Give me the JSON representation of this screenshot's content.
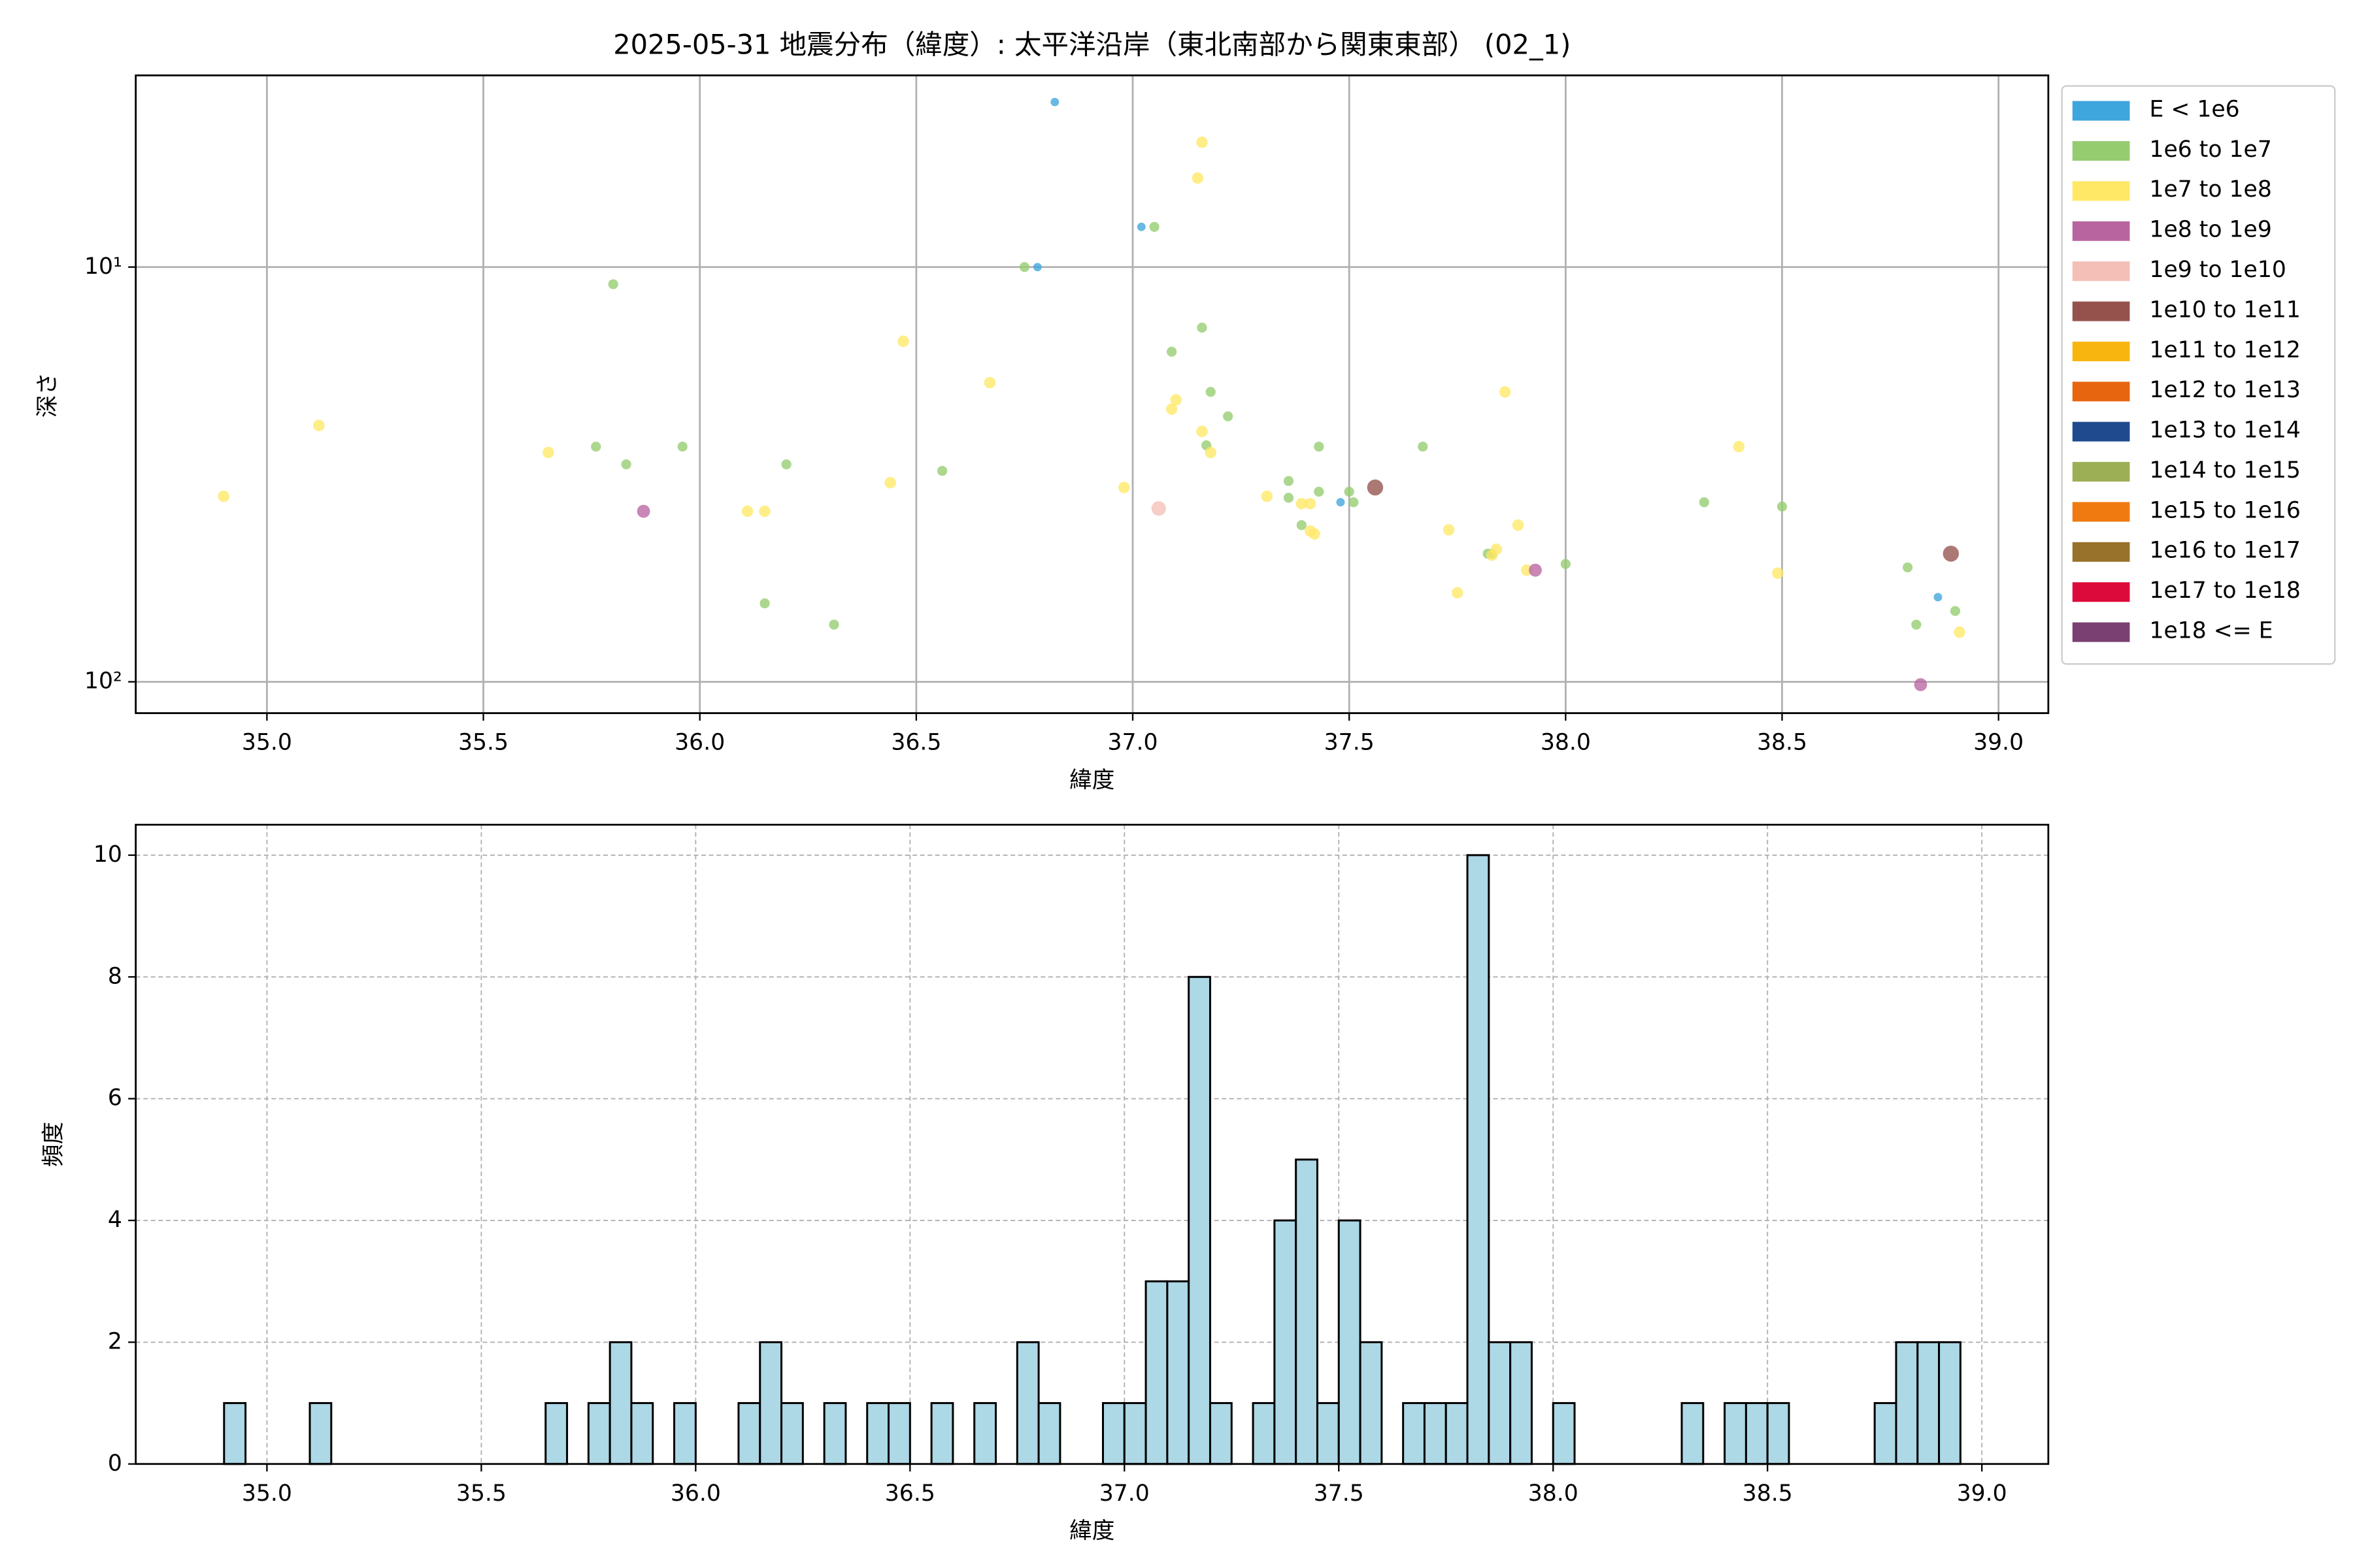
{
  "chart_data": [
    {
      "type": "scatter",
      "title": "2025-05-31 地震分布（緯度）: 太平洋沿岸（東北南部から関東東部） (02_1)",
      "xlabel": "緯度",
      "ylabel": "深さ",
      "xlim": [
        34.697,
        39.115
      ],
      "ylim": [
        3.45,
        119
      ],
      "yscale": "log",
      "y_inverted": true,
      "grid": true,
      "legend": "outside upper right",
      "xticks": [
        {
          "value": 35.0,
          "label": "35.0"
        },
        {
          "value": 35.5,
          "label": "35.5"
        },
        {
          "value": 36.0,
          "label": "36.0"
        },
        {
          "value": 36.5,
          "label": "36.5"
        },
        {
          "value": 37.0,
          "label": "37.0"
        },
        {
          "value": 37.5,
          "label": "37.5"
        },
        {
          "value": 38.0,
          "label": "38.0"
        },
        {
          "value": 38.5,
          "label": "38.5"
        },
        {
          "value": 39.0,
          "label": "39.0"
        }
      ],
      "yticks": [
        {
          "value": 10,
          "label": "10¹"
        },
        {
          "value": 100,
          "label": "10²"
        }
      ],
      "series": [
        {
          "name": "E < 1e6",
          "color": "#3fa5dd",
          "x": [
            36.82,
            37.02,
            36.78,
            37.48,
            38.86
          ],
          "values": [
            4.0,
            8.0,
            10,
            36.9,
            62.5
          ]
        },
        {
          "name": "1e6 to 1e7",
          "color": "#95cc70",
          "x": [
            35.8,
            36.75,
            37.05,
            37.16,
            37.09,
            37.18,
            37.22,
            37.17,
            35.76,
            35.96,
            35.83,
            36.2,
            36.56,
            37.36,
            37.36,
            37.43,
            37.43,
            37.5,
            37.51,
            37.39,
            37.67,
            38.32,
            38.5,
            37.83,
            37.82,
            38.0,
            38.79,
            36.15,
            36.31,
            38.81,
            38.9
          ],
          "values": [
            11,
            10,
            8.0,
            14,
            16,
            20.0,
            22.9,
            26.9,
            27.1,
            27.1,
            29.9,
            29.9,
            31.0,
            32.8,
            36.0,
            34.8,
            27.1,
            34.8,
            36.9,
            41.9,
            27.1,
            36.9,
            37.8,
            49.1,
            49.1,
            52.0,
            53.0,
            64.7,
            72.8,
            72.8,
            67.5
          ]
        },
        {
          "name": "1e7 to 1e8",
          "color": "#ffe866",
          "x": [
            37.16,
            37.15,
            35.12,
            34.9,
            35.65,
            36.47,
            36.67,
            37.1,
            37.09,
            37.16,
            37.18,
            36.98,
            36.44,
            36.11,
            36.15,
            37.31,
            37.39,
            37.41,
            37.41,
            37.42,
            37.73,
            37.89,
            37.86,
            37.84,
            37.83,
            38.4,
            37.75,
            37.91,
            38.49,
            38.91
          ],
          "values": [
            5.0,
            6.1,
            24.1,
            35.7,
            28.0,
            15.1,
            19.0,
            20.9,
            22.0,
            24.9,
            28.0,
            34.0,
            33.1,
            38.8,
            38.8,
            35.7,
            37.2,
            37.2,
            43.3,
            44.0,
            43.0,
            41.9,
            20.0,
            47.9,
            49.5,
            27.1,
            61.0,
            53.8,
            54.7,
            75.9
          ]
        },
        {
          "name": "1e8 to 1e9",
          "color": "#b8659f",
          "x": [
            35.87,
            37.93,
            38.82
          ],
          "values": [
            38.8,
            53.8,
            101.6
          ]
        },
        {
          "name": "1e9 to 1e10",
          "color": "#f4bfb7",
          "x": [
            37.06
          ],
          "values": [
            38.2
          ]
        },
        {
          "name": "1e10 to 1e11",
          "color": "#95524d",
          "x": [
            37.56,
            38.89
          ],
          "values": [
            34.0,
            49.1
          ]
        },
        {
          "name": "1e11 to 1e12",
          "color": "#f9b50f",
          "x": [],
          "values": []
        },
        {
          "name": "1e12 to 1e13",
          "color": "#e8650f",
          "x": [],
          "values": []
        },
        {
          "name": "1e13 to 1e14",
          "color": "#1f4a8e",
          "x": [],
          "values": []
        },
        {
          "name": "1e14 to 1e15",
          "color": "#9caf54",
          "x": [],
          "values": []
        },
        {
          "name": "1e15 to 1e16",
          "color": "#f07a10",
          "x": [],
          "values": []
        },
        {
          "name": "1e16 to 1e17",
          "color": "#98722b",
          "x": [],
          "values": []
        },
        {
          "name": "1e17 to 1e18",
          "color": "#dc0a3a",
          "x": [],
          "values": []
        },
        {
          "name": "1e18 <= E",
          "color": "#7a4071",
          "x": [],
          "values": []
        }
      ]
    },
    {
      "type": "histogram",
      "xlabel": "緯度",
      "ylabel": "頻度",
      "color": "#add8e6",
      "edgecolor": "#000000",
      "grid": true,
      "xlim": [
        34.694,
        39.155
      ],
      "ylim": [
        0,
        10.5
      ],
      "xticks": [
        {
          "value": 35.0,
          "label": "35.0"
        },
        {
          "value": 35.5,
          "label": "35.5"
        },
        {
          "value": 36.0,
          "label": "36.0"
        },
        {
          "value": 36.5,
          "label": "36.5"
        },
        {
          "value": 37.0,
          "label": "37.0"
        },
        {
          "value": 37.5,
          "label": "37.5"
        },
        {
          "value": 38.0,
          "label": "38.0"
        },
        {
          "value": 38.5,
          "label": "38.5"
        },
        {
          "value": 39.0,
          "label": "39.0"
        }
      ],
      "yticks": [
        0,
        2,
        4,
        6,
        8,
        10
      ],
      "bins": [
        34.9,
        34.95,
        35.0,
        35.05,
        35.1,
        35.15,
        35.2,
        35.25,
        35.3,
        35.35,
        35.4,
        35.45,
        35.5,
        35.55,
        35.6,
        35.65,
        35.7,
        35.75,
        35.8,
        35.85,
        35.9,
        35.95,
        36.0,
        36.05,
        36.1,
        36.15,
        36.2,
        36.25,
        36.3,
        36.35,
        36.4,
        36.45,
        36.5,
        36.55,
        36.6,
        36.65,
        36.7,
        36.75,
        36.8,
        36.85,
        36.9,
        36.95,
        37.0,
        37.05,
        37.1,
        37.15,
        37.2,
        37.25,
        37.3,
        37.35,
        37.4,
        37.45,
        37.5,
        37.55,
        37.6,
        37.65,
        37.7,
        37.75,
        37.8,
        37.85,
        37.9,
        37.95,
        38.0,
        38.05,
        38.1,
        38.15,
        38.2,
        38.25,
        38.3,
        38.35,
        38.4,
        38.45,
        38.5,
        38.55,
        38.6,
        38.65,
        38.7,
        38.75,
        38.8,
        38.85,
        38.9,
        38.95
      ],
      "values": [
        1,
        0,
        0,
        0,
        1,
        0,
        0,
        0,
        0,
        0,
        0,
        0,
        0,
        0,
        0,
        1,
        0,
        1,
        2,
        1,
        0,
        1,
        0,
        0,
        1,
        2,
        1,
        0,
        1,
        0,
        1,
        1,
        0,
        1,
        0,
        1,
        0,
        2,
        1,
        0,
        0,
        1,
        1,
        3,
        3,
        8,
        1,
        0,
        1,
        4,
        5,
        1,
        4,
        2,
        0,
        1,
        1,
        1,
        10,
        2,
        2,
        0,
        1,
        0,
        0,
        0,
        0,
        0,
        1,
        0,
        1,
        1,
        1,
        0,
        0,
        0,
        0,
        1,
        2,
        2,
        2
      ]
    }
  ]
}
